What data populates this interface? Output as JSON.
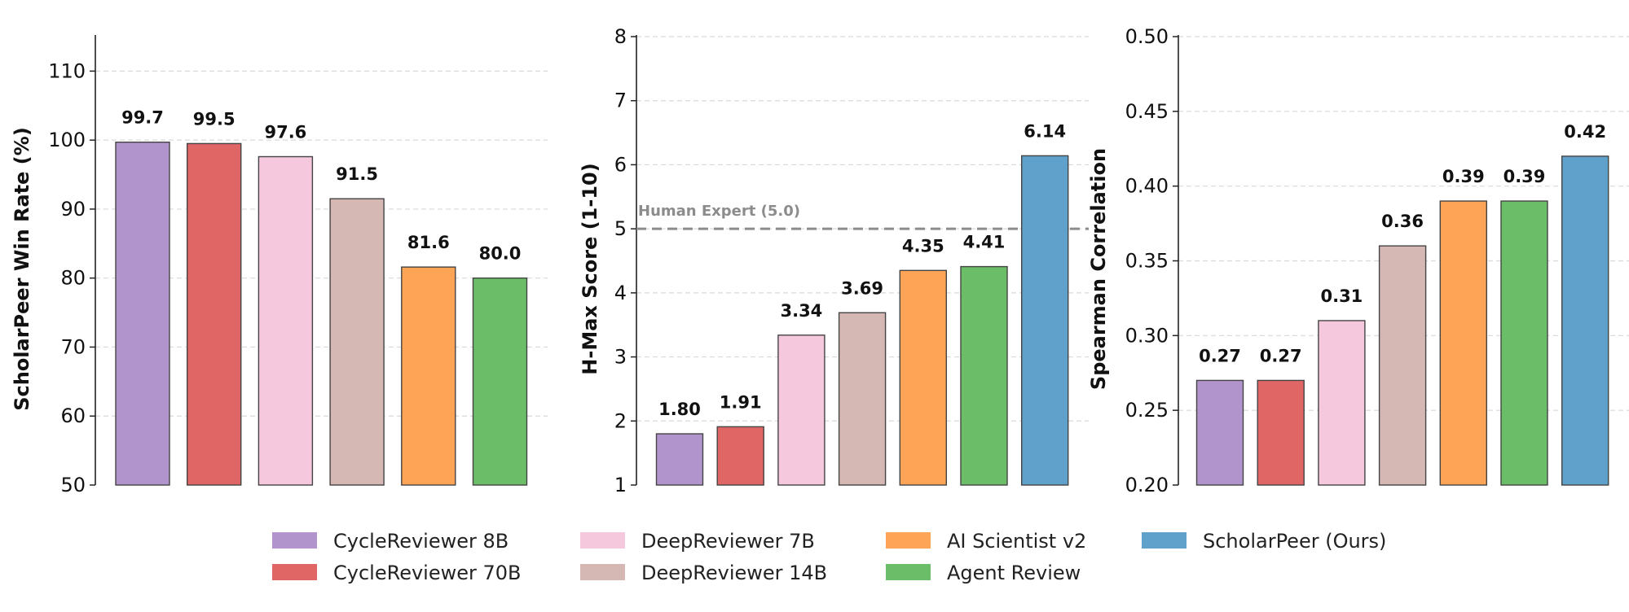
{
  "chart_data": {
    "legend": {
      "placement": "bottom-center",
      "entries": [
        {
          "name": "CycleReviewer 8B",
          "color": "#b294cc"
        },
        {
          "name": "CycleReviewer 70B",
          "color": "#e06666"
        },
        {
          "name": "DeepReviewer 7B",
          "color": "#f6c8dd"
        },
        {
          "name": "DeepReviewer 14B",
          "color": "#d5b8b3"
        },
        {
          "name": "AI Scientist v2",
          "color": "#fda456"
        },
        {
          "name": "Agent Review",
          "color": "#6cbd68"
        },
        {
          "name": "ScholarPeer (Ours)",
          "color": "#5fa1ca"
        }
      ]
    },
    "panels": [
      {
        "type": "bar",
        "ylabel": "ScholarPeer Win Rate (%)",
        "ylim": [
          50,
          115
        ],
        "yticks": [
          50,
          60,
          70,
          80,
          90,
          100,
          110
        ],
        "tick_decimals": 0,
        "value_decimals": 1,
        "grid": true,
        "categories": [
          "CycleReviewer 8B",
          "CycleReviewer 70B",
          "DeepReviewer 7B",
          "DeepReviewer 14B",
          "AI Scientist v2",
          "Agent Review"
        ],
        "values": [
          99.7,
          99.5,
          97.6,
          91.5,
          81.6,
          80.0
        ]
      },
      {
        "type": "bar",
        "ylabel": "H-Max Score (1-10)",
        "ylim": [
          1,
          8
        ],
        "yticks": [
          1,
          2,
          3,
          4,
          5,
          6,
          7,
          8
        ],
        "tick_decimals": 0,
        "value_decimals": 2,
        "grid": true,
        "reference_line": {
          "value": 5.0,
          "label": "Human Expert (5.0)"
        },
        "categories": [
          "CycleReviewer 8B",
          "CycleReviewer 70B",
          "DeepReviewer 7B",
          "DeepReviewer 14B",
          "AI Scientist v2",
          "Agent Review",
          "ScholarPeer (Ours)"
        ],
        "values": [
          1.8,
          1.91,
          3.34,
          3.69,
          4.35,
          4.41,
          6.14
        ]
      },
      {
        "type": "bar",
        "ylabel": "Spearman Correlation",
        "ylim": [
          0.2,
          0.5
        ],
        "yticks": [
          0.2,
          0.25,
          0.3,
          0.35,
          0.4,
          0.45,
          0.5
        ],
        "tick_decimals": 2,
        "value_decimals": 2,
        "grid": true,
        "categories": [
          "CycleReviewer 8B",
          "CycleReviewer 70B",
          "DeepReviewer 7B",
          "DeepReviewer 14B",
          "AI Scientist v2",
          "Agent Review",
          "ScholarPeer (Ours)"
        ],
        "values": [
          0.27,
          0.27,
          0.31,
          0.36,
          0.39,
          0.39,
          0.42
        ]
      }
    ]
  }
}
